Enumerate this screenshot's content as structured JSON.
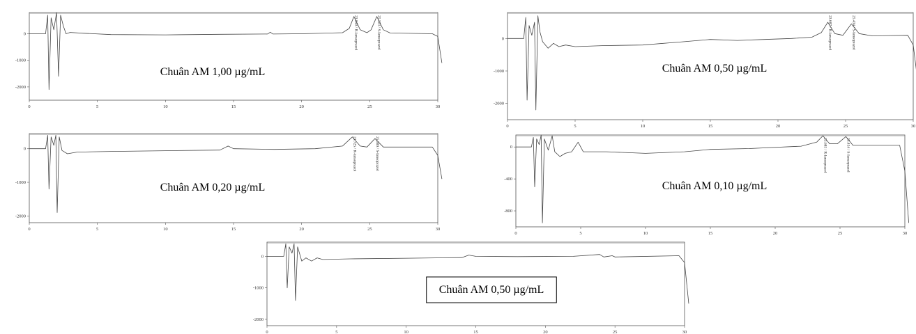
{
  "chart_data": [
    {
      "type": "line",
      "label": "Chuân AM 1,00 µg/mL",
      "xlim": [
        0,
        30
      ],
      "x_ticks": [
        "0",
        "5",
        "10",
        "15",
        "20",
        "25",
        "30"
      ],
      "ylim": [
        -2500,
        800
      ],
      "y_ticks": [
        {
          "value": 0,
          "label": "0"
        },
        {
          "value": -1000,
          "label": "-1000"
        },
        {
          "value": -2000,
          "label": "-2000"
        }
      ],
      "peak_labels": [
        {
          "x": 23.84,
          "text": "23.840 / R-lansoprazol"
        },
        {
          "x": 25.52,
          "text": "25.523 / S-lansoprazol"
        }
      ],
      "trace": [
        [
          0,
          0
        ],
        [
          1.2,
          0
        ],
        [
          1.35,
          700
        ],
        [
          1.45,
          -2100
        ],
        [
          1.6,
          600
        ],
        [
          1.8,
          150
        ],
        [
          2.0,
          800
        ],
        [
          2.15,
          -1600
        ],
        [
          2.3,
          700
        ],
        [
          2.5,
          300
        ],
        [
          2.7,
          0
        ],
        [
          3.0,
          50
        ],
        [
          4,
          20
        ],
        [
          6,
          -30
        ],
        [
          10,
          -40
        ],
        [
          14,
          -20
        ],
        [
          17.5,
          -10
        ],
        [
          17.7,
          60
        ],
        [
          17.9,
          -10
        ],
        [
          20,
          0
        ],
        [
          23,
          40
        ],
        [
          23.5,
          200
        ],
        [
          23.84,
          650
        ],
        [
          24.3,
          150
        ],
        [
          24.8,
          40
        ],
        [
          25.1,
          150
        ],
        [
          25.52,
          650
        ],
        [
          26,
          150
        ],
        [
          26.5,
          30
        ],
        [
          29.6,
          0
        ],
        [
          30,
          -100
        ],
        [
          30.3,
          -1100
        ]
      ]
    },
    {
      "type": "line",
      "label": "Chuân AM 0,50 µg/mL",
      "xlim": [
        0,
        30
      ],
      "x_ticks": [
        "0",
        "5",
        "10",
        "15",
        "20",
        "25",
        "30"
      ],
      "ylim": [
        -2500,
        800
      ],
      "y_ticks": [
        {
          "value": 0,
          "label": "0"
        },
        {
          "value": -1000,
          "label": "-1000"
        },
        {
          "value": -2000,
          "label": "-2000"
        }
      ],
      "peak_labels": [
        {
          "x": 23.687,
          "text": "23.687 / R-lansoprazol"
        },
        {
          "x": 25.434,
          "text": "25.434 / S-lansoprazol"
        }
      ],
      "trace": [
        [
          0,
          0
        ],
        [
          1.2,
          0
        ],
        [
          1.35,
          650
        ],
        [
          1.45,
          -1900
        ],
        [
          1.6,
          400
        ],
        [
          1.8,
          100
        ],
        [
          2.0,
          500
        ],
        [
          2.1,
          -2200
        ],
        [
          2.25,
          700
        ],
        [
          2.4,
          200
        ],
        [
          2.6,
          -100
        ],
        [
          3.0,
          -300
        ],
        [
          3.4,
          -150
        ],
        [
          3.8,
          -250
        ],
        [
          4.3,
          -200
        ],
        [
          5,
          -250
        ],
        [
          7,
          -220
        ],
        [
          10,
          -200
        ],
        [
          13,
          -100
        ],
        [
          15,
          -30
        ],
        [
          17,
          -60
        ],
        [
          19,
          -30
        ],
        [
          21,
          0
        ],
        [
          22.5,
          40
        ],
        [
          23.2,
          180
        ],
        [
          23.687,
          500
        ],
        [
          24.2,
          150
        ],
        [
          24.8,
          100
        ],
        [
          25.434,
          450
        ],
        [
          26,
          150
        ],
        [
          27,
          80
        ],
        [
          29.6,
          100
        ],
        [
          30,
          -200
        ],
        [
          30.3,
          -1200
        ]
      ]
    },
    {
      "type": "line",
      "label": "Chuân AM 0,20 µg/mL",
      "xlim": [
        0,
        30
      ],
      "x_ticks": [
        "0",
        "5",
        "10",
        "15",
        "20",
        "25",
        "30"
      ],
      "ylim": [
        -2200,
        450
      ],
      "y_ticks": [
        {
          "value": 0,
          "label": "0"
        },
        {
          "value": -1000,
          "label": "-1000"
        },
        {
          "value": -2000,
          "label": "-2000"
        }
      ],
      "peak_labels": [
        {
          "x": 23.725,
          "text": "23.725 / R-lansoprazol"
        },
        {
          "x": 25.389,
          "text": "25.389 / S-lansoprazol"
        }
      ],
      "trace": [
        [
          0,
          0
        ],
        [
          1.2,
          0
        ],
        [
          1.35,
          400
        ],
        [
          1.45,
          -1200
        ],
        [
          1.6,
          350
        ],
        [
          1.8,
          100
        ],
        [
          1.95,
          400
        ],
        [
          2.05,
          -1900
        ],
        [
          2.2,
          350
        ],
        [
          2.4,
          -50
        ],
        [
          2.8,
          -150
        ],
        [
          3.5,
          -100
        ],
        [
          6,
          -80
        ],
        [
          10,
          -60
        ],
        [
          14,
          -40
        ],
        [
          14.6,
          80
        ],
        [
          15,
          0
        ],
        [
          18,
          -20
        ],
        [
          21,
          0
        ],
        [
          23,
          80
        ],
        [
          23.725,
          350
        ],
        [
          24.3,
          80
        ],
        [
          24.8,
          50
        ],
        [
          25.389,
          300
        ],
        [
          26,
          50
        ],
        [
          29.6,
          50
        ],
        [
          30,
          -200
        ],
        [
          30.3,
          -900
        ]
      ]
    },
    {
      "type": "line",
      "label": "Chuân AM 0,10 µg/mL",
      "xlim": [
        0,
        30
      ],
      "x_ticks": [
        "0",
        "5",
        "10",
        "15",
        "20",
        "25",
        "30"
      ],
      "ylim": [
        -1000,
        150
      ],
      "y_ticks": [
        {
          "value": 0,
          "label": "0"
        },
        {
          "value": -400,
          "label": "-400"
        },
        {
          "value": -800,
          "label": "-800"
        }
      ],
      "peak_labels": [
        {
          "x": 23.685,
          "text": "23.685 / R-lansoprazol"
        },
        {
          "x": 25.454,
          "text": "25.454 / S-lansoprazol"
        }
      ],
      "trace": [
        [
          0,
          0
        ],
        [
          1.2,
          0
        ],
        [
          1.35,
          120
        ],
        [
          1.45,
          -500
        ],
        [
          1.6,
          100
        ],
        [
          1.8,
          30
        ],
        [
          1.95,
          150
        ],
        [
          2.05,
          -950
        ],
        [
          2.2,
          100
        ],
        [
          2.5,
          -40
        ],
        [
          2.8,
          140
        ],
        [
          3.0,
          -60
        ],
        [
          3.4,
          -120
        ],
        [
          3.8,
          -80
        ],
        [
          4.3,
          -60
        ],
        [
          4.8,
          60
        ],
        [
          5.2,
          -60
        ],
        [
          7,
          -60
        ],
        [
          10,
          -80
        ],
        [
          13,
          -60
        ],
        [
          15,
          -30
        ],
        [
          18,
          -20
        ],
        [
          22,
          10
        ],
        [
          23.2,
          60
        ],
        [
          23.685,
          140
        ],
        [
          24.2,
          40
        ],
        [
          24.8,
          40
        ],
        [
          25.454,
          130
        ],
        [
          26,
          20
        ],
        [
          29.6,
          20
        ],
        [
          30,
          -300
        ],
        [
          30.3,
          -950
        ]
      ]
    },
    {
      "type": "line",
      "label": "Chuân AM 0,50 µg/mL",
      "xlim": [
        0,
        30
      ],
      "x_ticks": [
        "0",
        "5",
        "10",
        "15",
        "20",
        "25",
        "30"
      ],
      "ylim": [
        -2200,
        450
      ],
      "y_ticks": [
        {
          "value": 0,
          "label": "0"
        },
        {
          "value": -1000,
          "label": "-1000"
        },
        {
          "value": -2000,
          "label": "-2000"
        }
      ],
      "peak_labels": [],
      "trace": [
        [
          0,
          0
        ],
        [
          1.2,
          0
        ],
        [
          1.35,
          400
        ],
        [
          1.45,
          -1000
        ],
        [
          1.6,
          300
        ],
        [
          1.8,
          100
        ],
        [
          1.95,
          400
        ],
        [
          2.05,
          -1400
        ],
        [
          2.2,
          300
        ],
        [
          2.5,
          -150
        ],
        [
          2.8,
          -50
        ],
        [
          3.2,
          -150
        ],
        [
          3.6,
          -50
        ],
        [
          4,
          -100
        ],
        [
          6,
          -80
        ],
        [
          10,
          -60
        ],
        [
          14,
          -40
        ],
        [
          14.5,
          40
        ],
        [
          15,
          0
        ],
        [
          18,
          -10
        ],
        [
          22,
          0
        ],
        [
          23.9,
          60
        ],
        [
          24.2,
          -20
        ],
        [
          24.8,
          20
        ],
        [
          25,
          -20
        ],
        [
          29.6,
          20
        ],
        [
          30,
          -200
        ],
        [
          30.3,
          -1500
        ]
      ]
    }
  ]
}
